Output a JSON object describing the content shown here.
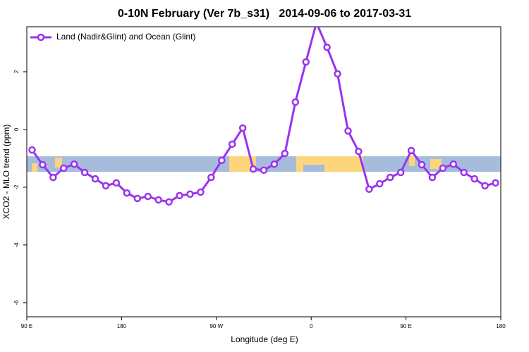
{
  "chart_data": {
    "type": "line",
    "title": "0-10N February (Ver 7b_s31)   2014-09-06 to 2017-03-31",
    "x_label": "Longitude (deg E)",
    "y_label": "XCO2 - MLO trend (ppm)",
    "x": [
      95,
      105,
      115,
      125,
      135,
      145,
      155,
      165,
      175,
      185,
      195,
      205,
      215,
      225,
      235,
      245,
      255,
      265,
      275,
      285,
      295,
      305,
      315,
      325,
      335,
      345,
      355,
      365,
      375,
      385,
      395,
      405,
      415,
      425,
      435,
      445,
      455,
      465,
      475,
      485,
      495,
      505,
      515,
      525,
      535
    ],
    "series": [
      {
        "name": "Land (Nadir&Glint) and Ocean (Glint)",
        "color": "#9933ee",
        "values": [
          -0.71,
          -1.22,
          -1.66,
          -1.34,
          -1.2,
          -1.49,
          -1.71,
          -1.95,
          -1.85,
          -2.2,
          -2.39,
          -2.32,
          -2.44,
          -2.51,
          -2.29,
          -2.24,
          -2.17,
          -1.66,
          -1.07,
          -0.51,
          0.05,
          -1.37,
          -1.41,
          -1.2,
          -0.83,
          0.95,
          2.34,
          3.7,
          2.85,
          1.93,
          -0.05,
          -0.76,
          -2.07,
          -1.88,
          -1.66,
          -1.49,
          -0.73,
          -1.22,
          -1.66,
          -1.34,
          -1.2,
          -1.49,
          -1.71,
          -1.95,
          -1.85
        ]
      }
    ],
    "xlim": [
      90,
      540
    ],
    "ylim": [
      -6.49,
      3.56
    ],
    "xticks": [
      {
        "value": 90,
        "label": "90 E"
      },
      180,
      {
        "value": 270,
        "label": "90 W"
      },
      {
        "value": 360,
        "label": "0"
      },
      {
        "value": 450,
        "label": "90 E"
      },
      {
        "value": 540,
        "label": "180"
      }
    ],
    "yticks": [
      -6,
      -4,
      -2,
      0,
      2
    ],
    "legend": "top-left"
  }
}
